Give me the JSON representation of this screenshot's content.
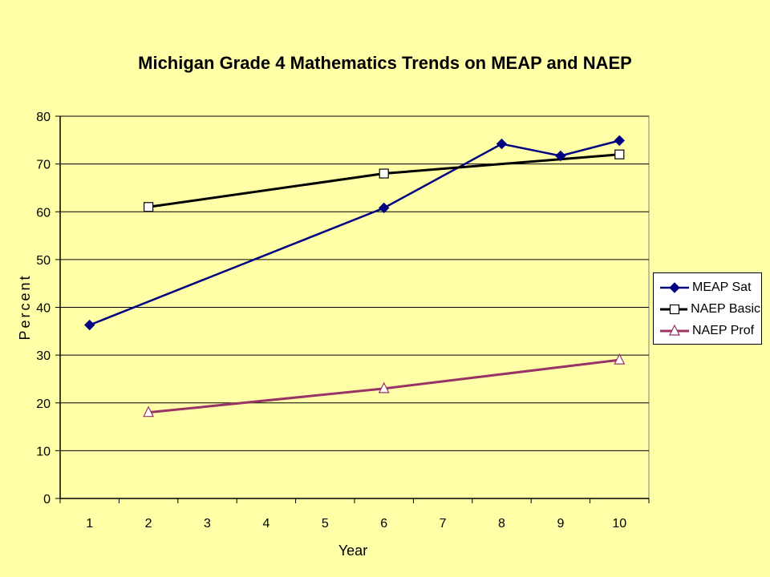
{
  "chart_data": {
    "type": "line",
    "title": "Michigan Grade 4 Mathematics Trends on MEAP and NAEP",
    "xlabel": "Year",
    "ylabel": "Percent",
    "categories": [
      "1",
      "2",
      "3",
      "4",
      "5",
      "6",
      "7",
      "8",
      "9",
      "10"
    ],
    "ylim": [
      0,
      80
    ],
    "yticks": [
      0,
      10,
      20,
      30,
      40,
      50,
      60,
      70,
      80
    ],
    "grid": true,
    "legend_position": "right",
    "series": [
      {
        "name": "MEAP Sat",
        "color": "#000080",
        "marker": "diamond",
        "points": [
          {
            "x": "1",
            "y": 36.3
          },
          {
            "x": "6",
            "y": 60.8
          },
          {
            "x": "8",
            "y": 74.2
          },
          {
            "x": "9",
            "y": 71.7
          },
          {
            "x": "10",
            "y": 74.9
          }
        ]
      },
      {
        "name": "NAEP Basic",
        "color": "#000000",
        "marker": "square",
        "points": [
          {
            "x": "2",
            "y": 61
          },
          {
            "x": "6",
            "y": 68
          },
          {
            "x": "10",
            "y": 72
          }
        ]
      },
      {
        "name": "NAEP Prof",
        "color": "#993366",
        "marker": "triangle",
        "points": [
          {
            "x": "2",
            "y": 18
          },
          {
            "x": "6",
            "y": 23
          },
          {
            "x": "10",
            "y": 29
          }
        ]
      }
    ]
  },
  "colors": {
    "background": "#FFFFA8",
    "plot_area": "#FFFFA8"
  }
}
